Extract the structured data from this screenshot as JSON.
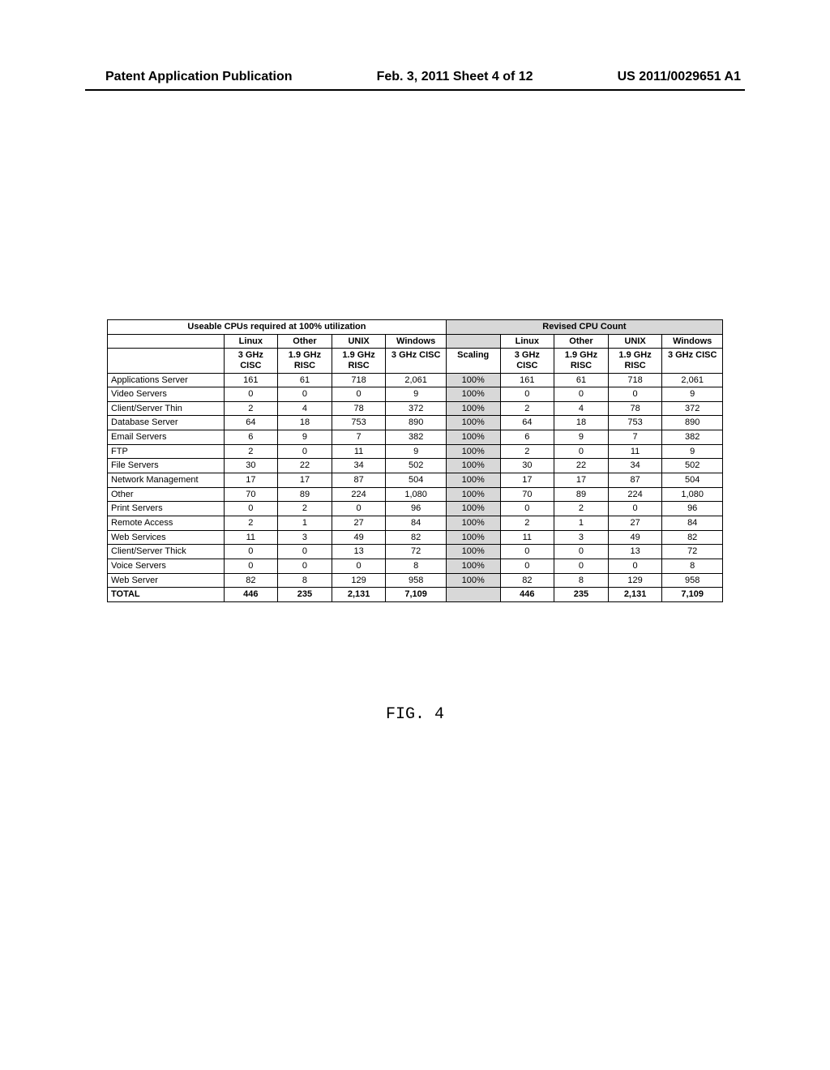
{
  "header": {
    "left": "Patent Application Publication",
    "mid": "Feb. 3, 2011  Sheet 4 of 12",
    "right": "US 2011/0029651 A1"
  },
  "table": {
    "group1_title": "Useable CPUs required at 100% utilization",
    "group2_title": "Revised CPU Count",
    "os_headers": [
      "Linux",
      "Other",
      "UNIX",
      "Windows"
    ],
    "spec_headers": [
      "3 GHz CISC",
      "1.9 GHz RISC",
      "1.9 GHz RISC",
      "3 GHz CISC"
    ],
    "scaling_header": "Scaling",
    "rows": [
      {
        "label": "Applications Server",
        "a": [
          "161",
          "61",
          "718",
          "2,061"
        ],
        "scaling": "100%",
        "b": [
          "161",
          "61",
          "718",
          "2,061"
        ]
      },
      {
        "label": "Video Servers",
        "a": [
          "0",
          "0",
          "0",
          "9"
        ],
        "scaling": "100%",
        "b": [
          "0",
          "0",
          "0",
          "9"
        ]
      },
      {
        "label": "Client/Server Thin",
        "a": [
          "2",
          "4",
          "78",
          "372"
        ],
        "scaling": "100%",
        "b": [
          "2",
          "4",
          "78",
          "372"
        ]
      },
      {
        "label": "Database Server",
        "a": [
          "64",
          "18",
          "753",
          "890"
        ],
        "scaling": "100%",
        "b": [
          "64",
          "18",
          "753",
          "890"
        ]
      },
      {
        "label": "Email Servers",
        "a": [
          "6",
          "9",
          "7",
          "382"
        ],
        "scaling": "100%",
        "b": [
          "6",
          "9",
          "7",
          "382"
        ]
      },
      {
        "label": "FTP",
        "a": [
          "2",
          "0",
          "11",
          "9"
        ],
        "scaling": "100%",
        "b": [
          "2",
          "0",
          "11",
          "9"
        ]
      },
      {
        "label": "File Servers",
        "a": [
          "30",
          "22",
          "34",
          "502"
        ],
        "scaling": "100%",
        "b": [
          "30",
          "22",
          "34",
          "502"
        ]
      },
      {
        "label": "Network Management",
        "a": [
          "17",
          "17",
          "87",
          "504"
        ],
        "scaling": "100%",
        "b": [
          "17",
          "17",
          "87",
          "504"
        ]
      },
      {
        "label": "Other",
        "a": [
          "70",
          "89",
          "224",
          "1,080"
        ],
        "scaling": "100%",
        "b": [
          "70",
          "89",
          "224",
          "1,080"
        ]
      },
      {
        "label": "Print Servers",
        "a": [
          "0",
          "2",
          "0",
          "96"
        ],
        "scaling": "100%",
        "b": [
          "0",
          "2",
          "0",
          "96"
        ]
      },
      {
        "label": "Remote Access",
        "a": [
          "2",
          "1",
          "27",
          "84"
        ],
        "scaling": "100%",
        "b": [
          "2",
          "1",
          "27",
          "84"
        ]
      },
      {
        "label": "Web Services",
        "a": [
          "11",
          "3",
          "49",
          "82"
        ],
        "scaling": "100%",
        "b": [
          "11",
          "3",
          "49",
          "82"
        ]
      },
      {
        "label": "Client/Server Thick",
        "a": [
          "0",
          "0",
          "13",
          "72"
        ],
        "scaling": "100%",
        "b": [
          "0",
          "0",
          "13",
          "72"
        ]
      },
      {
        "label": "Voice Servers",
        "a": [
          "0",
          "0",
          "0",
          "8"
        ],
        "scaling": "100%",
        "b": [
          "0",
          "0",
          "0",
          "8"
        ]
      },
      {
        "label": "Web Server",
        "a": [
          "82",
          "8",
          "129",
          "958"
        ],
        "scaling": "100%",
        "b": [
          "82",
          "8",
          "129",
          "958"
        ]
      }
    ],
    "total_label": "TOTAL",
    "totals_a": [
      "446",
      "235",
      "2,131",
      "7,109"
    ],
    "totals_b": [
      "446",
      "235",
      "2,131",
      "7,109"
    ]
  },
  "figure_caption": "FIG. 4"
}
